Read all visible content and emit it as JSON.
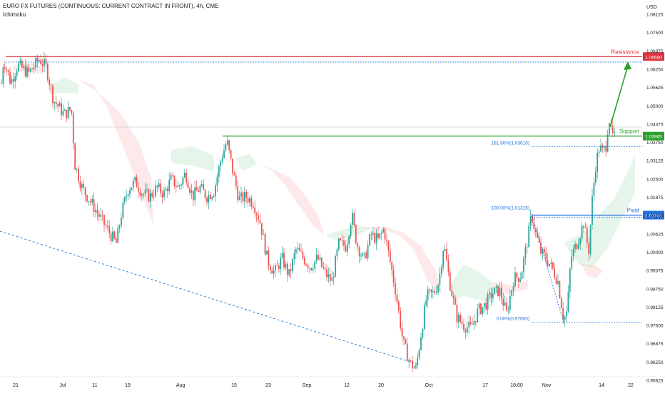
{
  "header": {
    "title": "EURO FX FUTURES (CONTINUOUS: CURRENT CONTRACT IN FRONT), 4h, CME",
    "indicator": "Ichimoku"
  },
  "chart_data": {
    "type": "candlestick",
    "currency": "USD",
    "ylim": [
      0.9575,
      1.0875
    ],
    "y_ticks": [
      "1.08125",
      "1.07500",
      "1.06875",
      "1.06250",
      "1.05625",
      "1.05000",
      "1.04375",
      "1.03750",
      "1.03125",
      "1.02500",
      "1.01875",
      "1.01250",
      "1.00625",
      "1.00000",
      "0.99375",
      "0.98750",
      "0.98125",
      "0.97500",
      "0.96875",
      "0.96250",
      "0.95625"
    ],
    "x_labels": [
      "21",
      "Jul",
      "11",
      "19",
      "Aug",
      "15",
      "23",
      "Sep",
      "12",
      "20",
      "Oct",
      "17",
      "18:00",
      "Nov",
      "14",
      "22"
    ],
    "levels": [
      {
        "name": "Resistance",
        "value": 1.0668,
        "label": "1.06680",
        "color": "#e0303a"
      },
      {
        "name": "Support",
        "value": 1.03965,
        "label": "1.03965",
        "color": "#2ca02c"
      },
      {
        "name": "Pivot",
        "value": 1.01265,
        "label": "1.01265",
        "color": "#1e6fe0"
      }
    ],
    "fib_labels": [
      {
        "text": "161.80%(1.03610)",
        "value": 1.0361
      },
      {
        "text": "100.00%(1.01315)",
        "value": 1.01315
      },
      {
        "text": "0.00%(0.97605)",
        "value": 0.97605
      }
    ],
    "price_path": [
      [
        0,
        1.052
      ],
      [
        5,
        1.066
      ],
      [
        15,
        1.058
      ],
      [
        25,
        1.064
      ],
      [
        40,
        1.061
      ],
      [
        55,
        1.066
      ],
      [
        65,
        1.063
      ],
      [
        75,
        1.052
      ],
      [
        90,
        1.047
      ],
      [
        100,
        1.049
      ],
      [
        105,
        1.03
      ],
      [
        115,
        1.022
      ],
      [
        125,
        1.018
      ],
      [
        135,
        1.014
      ],
      [
        145,
        1.01
      ],
      [
        155,
        1.006
      ],
      [
        163,
        1.003
      ],
      [
        170,
        1.013
      ],
      [
        180,
        1.022
      ],
      [
        190,
        1.024
      ],
      [
        200,
        1.02
      ],
      [
        210,
        1.019
      ],
      [
        220,
        1.022
      ],
      [
        230,
        1.02
      ],
      [
        240,
        1.025
      ],
      [
        250,
        1.022
      ],
      [
        260,
        1.027
      ],
      [
        270,
        1.019
      ],
      [
        280,
        1.022
      ],
      [
        290,
        1.019
      ],
      [
        300,
        1.021
      ],
      [
        310,
        1.032
      ],
      [
        318,
        1.038
      ],
      [
        325,
        1.029
      ],
      [
        335,
        1.018
      ],
      [
        345,
        1.019
      ],
      [
        355,
        1.017
      ],
      [
        365,
        1.01
      ],
      [
        375,
        0.997
      ],
      [
        385,
        0.993
      ],
      [
        395,
        0.998
      ],
      [
        405,
        0.992
      ],
      [
        415,
        1.001
      ],
      [
        425,
        0.998
      ],
      [
        435,
        0.995
      ],
      [
        445,
        0.998
      ],
      [
        455,
        0.993
      ],
      [
        465,
        0.99
      ],
      [
        475,
        1.003
      ],
      [
        485,
        1.002
      ],
      [
        493,
        1.013
      ],
      [
        500,
        1.003
      ],
      [
        510,
        0.997
      ],
      [
        520,
        1.006
      ],
      [
        530,
        1.004
      ],
      [
        538,
        1.008
      ],
      [
        545,
        0.999
      ],
      [
        555,
        0.986
      ],
      [
        565,
        0.969
      ],
      [
        575,
        0.962
      ],
      [
        583,
        0.96
      ],
      [
        590,
        0.972
      ],
      [
        598,
        0.985
      ],
      [
        608,
        0.986
      ],
      [
        615,
        0.99
      ],
      [
        622,
        1.003
      ],
      [
        630,
        0.99
      ],
      [
        640,
        0.978
      ],
      [
        650,
        0.975
      ],
      [
        660,
        0.974
      ],
      [
        670,
        0.98
      ],
      [
        680,
        0.982
      ],
      [
        690,
        0.986
      ],
      [
        700,
        0.987
      ],
      [
        710,
        0.979
      ],
      [
        720,
        0.991
      ],
      [
        730,
        0.992
      ],
      [
        740,
        1.005
      ],
      [
        745,
        1.013
      ],
      [
        750,
        1.007
      ],
      [
        758,
        1.0
      ],
      [
        765,
        0.998
      ],
      [
        775,
        0.994
      ],
      [
        782,
        0.99
      ],
      [
        790,
        0.977
      ],
      [
        795,
        0.98
      ],
      [
        800,
        0.998
      ],
      [
        810,
        1.004
      ],
      [
        818,
        1.01
      ],
      [
        825,
        1.0
      ],
      [
        830,
        1.018
      ],
      [
        835,
        1.03
      ],
      [
        840,
        1.036
      ],
      [
        845,
        1.034
      ],
      [
        850,
        1.037
      ],
      [
        853,
        1.047
      ],
      [
        857,
        1.04
      ],
      [
        862,
        1.039
      ]
    ]
  }
}
